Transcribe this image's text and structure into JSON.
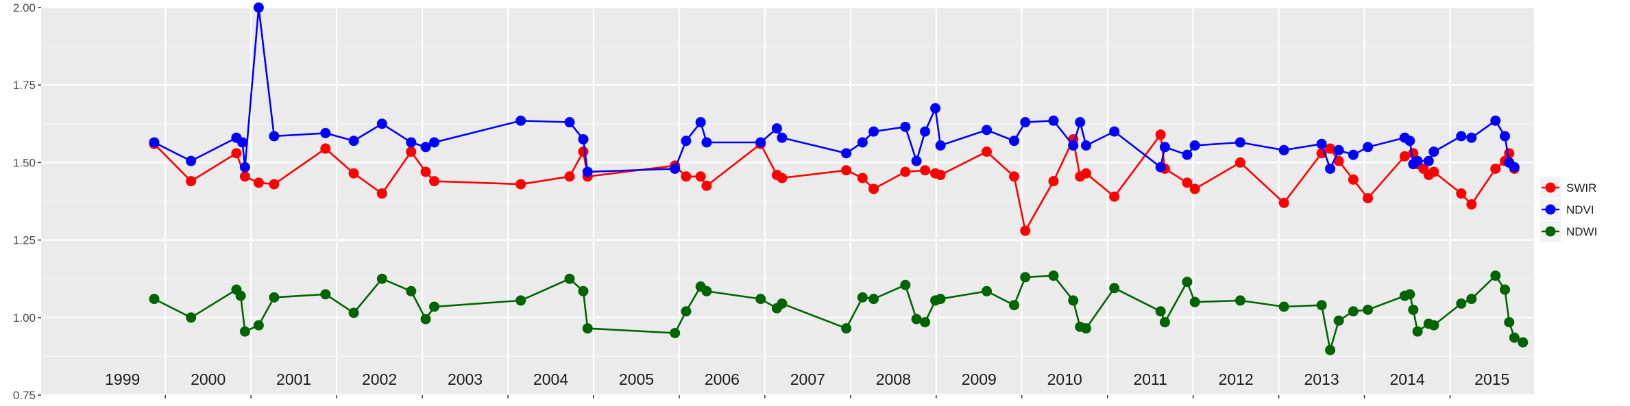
{
  "chart_data": {
    "type": "line",
    "title": "",
    "xlabel": "",
    "ylabel": "",
    "xlim": [
      1998.55,
      2015.98
    ],
    "ylim": [
      0.75,
      2.0
    ],
    "y_ticks": [
      0.75,
      1.0,
      1.25,
      1.5,
      1.75,
      2.0
    ],
    "y_tick_labels": [
      "0.75",
      "1.00",
      "1.25",
      "1.50",
      "1.75",
      "2.00"
    ],
    "year_labels": [
      "1999",
      "2000",
      "2001",
      "2002",
      "2003",
      "2004",
      "2005",
      "2006",
      "2007",
      "2008",
      "2009",
      "2010",
      "2011",
      "2012",
      "2013",
      "2014",
      "2015"
    ],
    "grid": true,
    "legend_position": "right",
    "series": [
      {
        "name": "SWIR",
        "color": "#ff0000",
        "points": [
          [
            1999.87,
            1.56
          ],
          [
            2000.3,
            1.44
          ],
          [
            2000.83,
            1.53
          ],
          [
            2000.93,
            1.455
          ],
          [
            2001.09,
            1.435
          ],
          [
            2001.27,
            1.43
          ],
          [
            2001.87,
            1.545
          ],
          [
            2002.2,
            1.465
          ],
          [
            2002.53,
            1.4
          ],
          [
            2002.87,
            1.535
          ],
          [
            2003.04,
            1.47
          ],
          [
            2003.14,
            1.44
          ],
          [
            2004.15,
            1.43
          ],
          [
            2004.72,
            1.455
          ],
          [
            2004.88,
            1.535
          ],
          [
            2004.93,
            1.455
          ],
          [
            2005.95,
            1.49
          ],
          [
            2006.08,
            1.455
          ],
          [
            2006.25,
            1.455
          ],
          [
            2006.32,
            1.425
          ],
          [
            2006.95,
            1.56
          ],
          [
            2007.14,
            1.46
          ],
          [
            2007.2,
            1.45
          ],
          [
            2007.95,
            1.475
          ],
          [
            2008.14,
            1.45
          ],
          [
            2008.27,
            1.415
          ],
          [
            2008.64,
            1.47
          ],
          [
            2008.87,
            1.475
          ],
          [
            2008.99,
            1.465
          ],
          [
            2009.05,
            1.46
          ],
          [
            2009.59,
            1.535
          ],
          [
            2009.91,
            1.455
          ],
          [
            2010.04,
            1.28
          ],
          [
            2010.37,
            1.44
          ],
          [
            2010.6,
            1.575
          ],
          [
            2010.68,
            1.455
          ],
          [
            2010.75,
            1.465
          ],
          [
            2011.08,
            1.39
          ],
          [
            2011.62,
            1.59
          ],
          [
            2011.67,
            1.48
          ],
          [
            2011.93,
            1.435
          ],
          [
            2012.02,
            1.415
          ],
          [
            2012.55,
            1.5
          ],
          [
            2013.06,
            1.37
          ],
          [
            2013.5,
            1.53
          ],
          [
            2013.6,
            1.545
          ],
          [
            2013.7,
            1.505
          ],
          [
            2013.87,
            1.445
          ],
          [
            2014.04,
            1.385
          ],
          [
            2014.47,
            1.52
          ],
          [
            2014.57,
            1.53
          ],
          [
            2014.62,
            1.495
          ],
          [
            2014.69,
            1.48
          ],
          [
            2014.75,
            1.46
          ],
          [
            2014.81,
            1.47
          ],
          [
            2015.13,
            1.4
          ],
          [
            2015.25,
            1.365
          ],
          [
            2015.53,
            1.48
          ],
          [
            2015.64,
            1.505
          ],
          [
            2015.69,
            1.53
          ],
          [
            2015.75,
            1.48
          ]
        ]
      },
      {
        "name": "NDVI",
        "color": "#0000ff",
        "points": [
          [
            1999.87,
            1.565
          ],
          [
            2000.3,
            1.505
          ],
          [
            2000.83,
            1.58
          ],
          [
            2000.9,
            1.565
          ],
          [
            2000.93,
            1.485
          ],
          [
            2001.09,
            2.0
          ],
          [
            2001.27,
            1.585
          ],
          [
            2001.87,
            1.595
          ],
          [
            2002.2,
            1.57
          ],
          [
            2002.53,
            1.625
          ],
          [
            2002.87,
            1.565
          ],
          [
            2003.04,
            1.55
          ],
          [
            2003.14,
            1.565
          ],
          [
            2004.15,
            1.635
          ],
          [
            2004.72,
            1.63
          ],
          [
            2004.88,
            1.575
          ],
          [
            2004.93,
            1.47
          ],
          [
            2005.95,
            1.48
          ],
          [
            2006.08,
            1.57
          ],
          [
            2006.25,
            1.63
          ],
          [
            2006.32,
            1.565
          ],
          [
            2006.95,
            1.565
          ],
          [
            2007.14,
            1.61
          ],
          [
            2007.2,
            1.58
          ],
          [
            2007.95,
            1.53
          ],
          [
            2008.14,
            1.565
          ],
          [
            2008.27,
            1.6
          ],
          [
            2008.64,
            1.615
          ],
          [
            2008.77,
            1.505
          ],
          [
            2008.87,
            1.6
          ],
          [
            2008.99,
            1.675
          ],
          [
            2009.05,
            1.555
          ],
          [
            2009.59,
            1.605
          ],
          [
            2009.91,
            1.57
          ],
          [
            2010.04,
            1.63
          ],
          [
            2010.37,
            1.635
          ],
          [
            2010.6,
            1.555
          ],
          [
            2010.68,
            1.63
          ],
          [
            2010.75,
            1.555
          ],
          [
            2011.08,
            1.6
          ],
          [
            2011.62,
            1.485
          ],
          [
            2011.67,
            1.55
          ],
          [
            2011.93,
            1.525
          ],
          [
            2012.02,
            1.555
          ],
          [
            2012.55,
            1.565
          ],
          [
            2013.06,
            1.54
          ],
          [
            2013.5,
            1.56
          ],
          [
            2013.6,
            1.48
          ],
          [
            2013.7,
            1.54
          ],
          [
            2013.87,
            1.525
          ],
          [
            2014.04,
            1.55
          ],
          [
            2014.47,
            1.58
          ],
          [
            2014.53,
            1.57
          ],
          [
            2014.57,
            1.495
          ],
          [
            2014.62,
            1.505
          ],
          [
            2014.75,
            1.505
          ],
          [
            2014.81,
            1.535
          ],
          [
            2015.13,
            1.585
          ],
          [
            2015.25,
            1.58
          ],
          [
            2015.53,
            1.635
          ],
          [
            2015.64,
            1.585
          ],
          [
            2015.69,
            1.5
          ],
          [
            2015.75,
            1.485
          ]
        ]
      },
      {
        "name": "NDWI",
        "color": "#006400",
        "points": [
          [
            1999.87,
            1.06
          ],
          [
            2000.3,
            1.0
          ],
          [
            2000.83,
            1.09
          ],
          [
            2000.88,
            1.07
          ],
          [
            2000.93,
            0.955
          ],
          [
            2001.09,
            0.975
          ],
          [
            2001.27,
            1.065
          ],
          [
            2001.87,
            1.075
          ],
          [
            2002.2,
            1.015
          ],
          [
            2002.53,
            1.125
          ],
          [
            2002.87,
            1.085
          ],
          [
            2003.04,
            0.995
          ],
          [
            2003.14,
            1.035
          ],
          [
            2004.15,
            1.055
          ],
          [
            2004.72,
            1.125
          ],
          [
            2004.88,
            1.085
          ],
          [
            2004.93,
            0.965
          ],
          [
            2005.95,
            0.95
          ],
          [
            2006.08,
            1.02
          ],
          [
            2006.25,
            1.1
          ],
          [
            2006.32,
            1.085
          ],
          [
            2006.95,
            1.06
          ],
          [
            2007.14,
            1.03
          ],
          [
            2007.2,
            1.045
          ],
          [
            2007.95,
            0.965
          ],
          [
            2008.14,
            1.065
          ],
          [
            2008.27,
            1.06
          ],
          [
            2008.64,
            1.105
          ],
          [
            2008.77,
            0.995
          ],
          [
            2008.87,
            0.985
          ],
          [
            2008.99,
            1.055
          ],
          [
            2009.05,
            1.06
          ],
          [
            2009.59,
            1.085
          ],
          [
            2009.91,
            1.04
          ],
          [
            2010.04,
            1.13
          ],
          [
            2010.37,
            1.135
          ],
          [
            2010.6,
            1.055
          ],
          [
            2010.68,
            0.97
          ],
          [
            2010.75,
            0.965
          ],
          [
            2011.08,
            1.095
          ],
          [
            2011.62,
            1.02
          ],
          [
            2011.67,
            0.985
          ],
          [
            2011.93,
            1.115
          ],
          [
            2012.02,
            1.05
          ],
          [
            2012.55,
            1.055
          ],
          [
            2013.06,
            1.035
          ],
          [
            2013.5,
            1.04
          ],
          [
            2013.6,
            0.895
          ],
          [
            2013.7,
            0.99
          ],
          [
            2013.87,
            1.02
          ],
          [
            2014.04,
            1.025
          ],
          [
            2014.47,
            1.07
          ],
          [
            2014.53,
            1.075
          ],
          [
            2014.57,
            1.025
          ],
          [
            2014.62,
            0.955
          ],
          [
            2014.75,
            0.98
          ],
          [
            2014.81,
            0.975
          ],
          [
            2015.13,
            1.045
          ],
          [
            2015.25,
            1.06
          ],
          [
            2015.53,
            1.135
          ],
          [
            2015.64,
            1.09
          ],
          [
            2015.69,
            0.985
          ],
          [
            2015.75,
            0.935
          ],
          [
            2015.85,
            0.92
          ]
        ]
      }
    ]
  }
}
